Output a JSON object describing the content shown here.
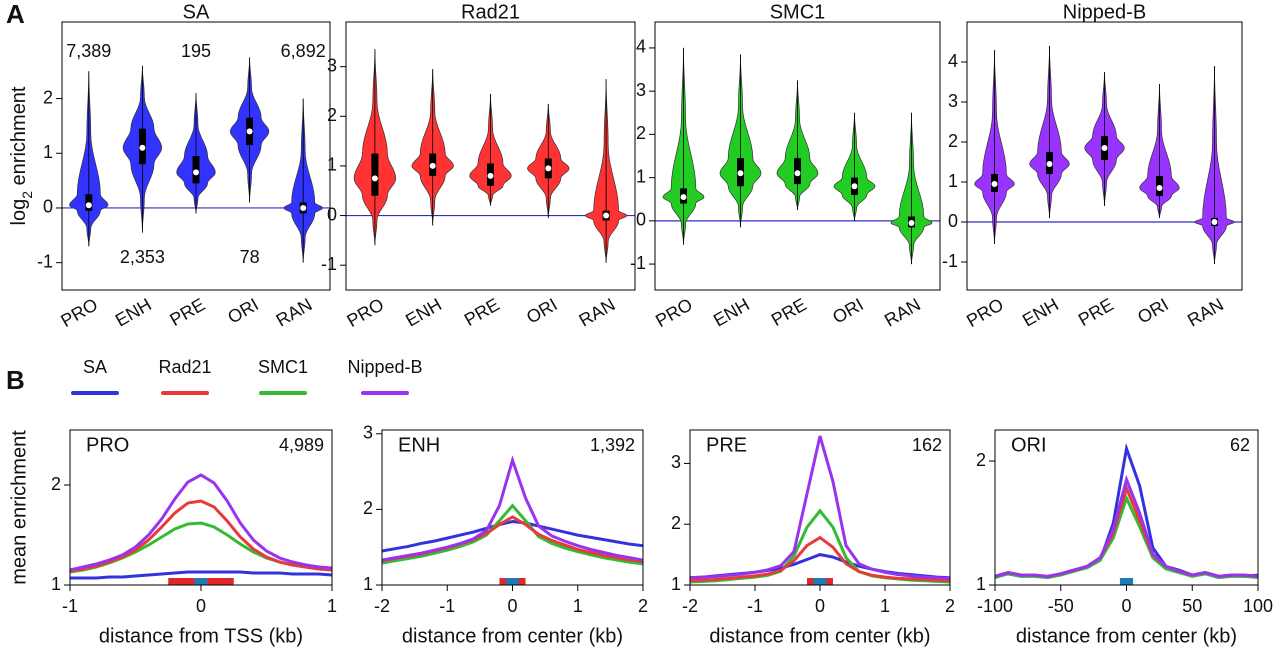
{
  "panels": [
    "A",
    "B"
  ],
  "chart_data": [
    {
      "type": "violin",
      "title": "SA",
      "ylabel": {
        "base": "log",
        "sub": "2",
        "rest": " enrichment"
      },
      "color": "#3333ff",
      "categories": [
        "PRO",
        "ENH",
        "PRE",
        "ORI",
        "RAN"
      ],
      "stats": {
        "min": [
          -0.7,
          -0.45,
          -0.1,
          0.1,
          -1.0
        ],
        "q1": [
          -0.05,
          0.8,
          0.45,
          1.15,
          -0.1
        ],
        "median": [
          0.05,
          1.1,
          0.65,
          1.4,
          0.0
        ],
        "q3": [
          0.25,
          1.45,
          0.95,
          1.65,
          0.1
        ],
        "max": [
          2.5,
          2.6,
          2.1,
          2.75,
          2.0
        ]
      },
      "ylim": [
        -1.5,
        3.4
      ],
      "yticks": [
        -1,
        0,
        1,
        2
      ],
      "hline": 0,
      "hline_color": "#3030c0",
      "annotations": [
        {
          "text": "7,389",
          "category": 0,
          "position": "top"
        },
        {
          "text": "195",
          "category": 2,
          "position": "top"
        },
        {
          "text": "6,892",
          "category": 4,
          "position": "top"
        },
        {
          "text": "2,353",
          "category": 1,
          "position": "bottom"
        },
        {
          "text": "78",
          "category": 3,
          "position": "bottom"
        }
      ]
    },
    {
      "type": "violin",
      "title": "Rad21",
      "color": "#ff3333",
      "categories": [
        "PRO",
        "ENH",
        "PRE",
        "ORI",
        "RAN"
      ],
      "stats": {
        "min": [
          -0.6,
          -0.2,
          0.2,
          -0.05,
          -0.95
        ],
        "q1": [
          0.4,
          0.8,
          0.6,
          0.75,
          -0.1
        ],
        "median": [
          0.75,
          1.0,
          0.8,
          0.95,
          0.0
        ],
        "q3": [
          1.25,
          1.25,
          1.05,
          1.15,
          0.1
        ],
        "max": [
          3.35,
          2.95,
          2.45,
          2.25,
          2.75
        ]
      },
      "ylim": [
        -1.5,
        3.9
      ],
      "yticks": [
        -1,
        0,
        1,
        2,
        3
      ],
      "hline": 0,
      "hline_color": "#3030c0"
    },
    {
      "type": "violin",
      "title": "SMC1",
      "color": "#22cc22",
      "categories": [
        "PRO",
        "ENH",
        "PRE",
        "ORI",
        "RAN"
      ],
      "stats": {
        "min": [
          -0.55,
          -0.15,
          0.25,
          0.0,
          -1.0
        ],
        "q1": [
          0.4,
          0.8,
          0.85,
          0.6,
          -0.15
        ],
        "median": [
          0.55,
          1.1,
          1.1,
          0.8,
          -0.05
        ],
        "q3": [
          0.75,
          1.45,
          1.45,
          1.0,
          0.1
        ],
        "max": [
          4.0,
          3.85,
          3.25,
          2.5,
          2.5
        ]
      },
      "ylim": [
        -1.6,
        4.6
      ],
      "yticks": [
        -1,
        0,
        1,
        2,
        3,
        4
      ],
      "hline": 0,
      "hline_color": "#3030c0"
    },
    {
      "type": "violin",
      "title": "Nipped-B",
      "color": "#9933ff",
      "categories": [
        "PRO",
        "ENH",
        "PRE",
        "ORI",
        "RAN"
      ],
      "stats": {
        "min": [
          -0.55,
          0.1,
          0.4,
          0.1,
          -1.05
        ],
        "q1": [
          0.75,
          1.2,
          1.55,
          0.65,
          -0.1
        ],
        "median": [
          0.95,
          1.45,
          1.85,
          0.85,
          0.0
        ],
        "q3": [
          1.2,
          1.75,
          2.15,
          1.15,
          0.1
        ],
        "max": [
          4.3,
          4.4,
          3.75,
          3.45,
          3.9
        ]
      },
      "ylim": [
        -1.7,
        5.0
      ],
      "yticks": [
        -1,
        0,
        1,
        2,
        3,
        4
      ],
      "hline": 0,
      "hline_color": "#3030c0"
    },
    {
      "type": "line",
      "label": "PRO",
      "count": "4,989",
      "xlabel": "distance from TSS (kb)",
      "ylabel": "mean enrichment",
      "x": [
        -1,
        -0.9,
        -0.8,
        -0.7,
        -0.6,
        -0.5,
        -0.4,
        -0.3,
        -0.2,
        -0.1,
        0,
        0.1,
        0.2,
        0.3,
        0.4,
        0.5,
        0.6,
        0.7,
        0.8,
        0.9,
        1
      ],
      "series": [
        {
          "name": "SA",
          "color": "#3333dd",
          "values": [
            1.07,
            1.07,
            1.07,
            1.08,
            1.08,
            1.09,
            1.1,
            1.11,
            1.12,
            1.13,
            1.13,
            1.13,
            1.13,
            1.13,
            1.12,
            1.12,
            1.12,
            1.11,
            1.11,
            1.11,
            1.1
          ]
        },
        {
          "name": "Rad21",
          "color": "#e83a3a",
          "values": [
            1.14,
            1.16,
            1.19,
            1.23,
            1.28,
            1.35,
            1.45,
            1.58,
            1.72,
            1.82,
            1.84,
            1.78,
            1.64,
            1.48,
            1.36,
            1.28,
            1.23,
            1.2,
            1.18,
            1.16,
            1.15
          ]
        },
        {
          "name": "SMC1",
          "color": "#33bb33",
          "values": [
            1.13,
            1.15,
            1.18,
            1.22,
            1.27,
            1.33,
            1.4,
            1.48,
            1.56,
            1.61,
            1.62,
            1.58,
            1.5,
            1.41,
            1.33,
            1.27,
            1.23,
            1.2,
            1.18,
            1.16,
            1.15
          ]
        },
        {
          "name": "Nipped-B",
          "color": "#9933ee",
          "values": [
            1.15,
            1.18,
            1.21,
            1.25,
            1.3,
            1.38,
            1.5,
            1.66,
            1.86,
            2.03,
            2.1,
            2.02,
            1.84,
            1.62,
            1.45,
            1.34,
            1.27,
            1.23,
            1.2,
            1.18,
            1.17
          ]
        }
      ],
      "xlim": [
        -1,
        1
      ],
      "xticks": [
        -1,
        0,
        1
      ],
      "ylim": [
        1,
        2.55
      ],
      "yticks": [
        1,
        2
      ],
      "regions": [
        {
          "range": [
            -0.25,
            0.25
          ],
          "color": "#e02828"
        },
        {
          "range": [
            -0.05,
            0.05
          ],
          "color": "#1f7ab8"
        }
      ]
    },
    {
      "type": "line",
      "label": "ENH",
      "count": "1,392",
      "xlabel": "distance from center (kb)",
      "x": [
        -2,
        -1.8,
        -1.6,
        -1.4,
        -1.2,
        -1,
        -0.8,
        -0.6,
        -0.4,
        -0.2,
        0,
        0.2,
        0.4,
        0.6,
        0.8,
        1,
        1.2,
        1.4,
        1.6,
        1.8,
        2
      ],
      "series": [
        {
          "name": "SA",
          "color": "#3333dd",
          "values": [
            1.45,
            1.48,
            1.51,
            1.55,
            1.58,
            1.62,
            1.66,
            1.7,
            1.75,
            1.8,
            1.84,
            1.82,
            1.78,
            1.74,
            1.7,
            1.66,
            1.63,
            1.6,
            1.57,
            1.54,
            1.52
          ]
        },
        {
          "name": "Rad21",
          "color": "#e83a3a",
          "values": [
            1.32,
            1.35,
            1.38,
            1.41,
            1.45,
            1.49,
            1.54,
            1.6,
            1.68,
            1.8,
            1.9,
            1.8,
            1.67,
            1.59,
            1.53,
            1.47,
            1.43,
            1.39,
            1.36,
            1.33,
            1.31
          ]
        },
        {
          "name": "SMC1",
          "color": "#33bb33",
          "values": [
            1.29,
            1.32,
            1.35,
            1.38,
            1.42,
            1.46,
            1.51,
            1.57,
            1.66,
            1.85,
            2.05,
            1.85,
            1.64,
            1.55,
            1.49,
            1.44,
            1.4,
            1.36,
            1.33,
            1.3,
            1.28
          ]
        },
        {
          "name": "Nipped-B",
          "color": "#9933ee",
          "values": [
            1.33,
            1.36,
            1.39,
            1.42,
            1.46,
            1.5,
            1.55,
            1.61,
            1.72,
            2.05,
            2.65,
            2.15,
            1.78,
            1.65,
            1.58,
            1.52,
            1.47,
            1.43,
            1.39,
            1.36,
            1.33
          ]
        }
      ],
      "xlim": [
        -2,
        2
      ],
      "xticks": [
        -2,
        -1,
        0,
        1,
        2
      ],
      "ylim": [
        1,
        3.05
      ],
      "yticks": [
        1,
        2,
        3
      ],
      "regions": [
        {
          "range": [
            -0.2,
            0.2
          ],
          "color": "#e02828"
        },
        {
          "range": [
            -0.1,
            0.1
          ],
          "color": "#1f7ab8"
        }
      ]
    },
    {
      "type": "line",
      "label": "PRE",
      "count": "162",
      "xlabel": "distance from center (kb)",
      "x": [
        -2,
        -1.8,
        -1.6,
        -1.4,
        -1.2,
        -1,
        -0.8,
        -0.6,
        -0.4,
        -0.2,
        0,
        0.2,
        0.4,
        0.6,
        0.8,
        1,
        1.2,
        1.4,
        1.6,
        1.8,
        2
      ],
      "series": [
        {
          "name": "SA",
          "color": "#3333dd",
          "values": [
            1.12,
            1.13,
            1.15,
            1.17,
            1.19,
            1.21,
            1.24,
            1.28,
            1.34,
            1.42,
            1.5,
            1.46,
            1.38,
            1.31,
            1.26,
            1.22,
            1.19,
            1.17,
            1.15,
            1.13,
            1.12
          ]
        },
        {
          "name": "Rad21",
          "color": "#e83a3a",
          "values": [
            1.07,
            1.08,
            1.09,
            1.11,
            1.13,
            1.15,
            1.18,
            1.24,
            1.4,
            1.65,
            1.78,
            1.62,
            1.35,
            1.22,
            1.16,
            1.13,
            1.11,
            1.1,
            1.09,
            1.08,
            1.07
          ]
        },
        {
          "name": "SMC1",
          "color": "#33bb33",
          "values": [
            1.05,
            1.06,
            1.07,
            1.09,
            1.11,
            1.13,
            1.16,
            1.23,
            1.48,
            1.95,
            2.22,
            1.95,
            1.45,
            1.22,
            1.15,
            1.12,
            1.1,
            1.08,
            1.07,
            1.06,
            1.05
          ]
        },
        {
          "name": "Nipped-B",
          "color": "#9933ee",
          "values": [
            1.12,
            1.13,
            1.14,
            1.16,
            1.18,
            1.21,
            1.25,
            1.32,
            1.55,
            2.5,
            3.45,
            2.7,
            1.65,
            1.35,
            1.26,
            1.21,
            1.17,
            1.15,
            1.13,
            1.12,
            1.11
          ]
        }
      ],
      "xlim": [
        -2,
        2
      ],
      "xticks": [
        -2,
        -1,
        0,
        1,
        2
      ],
      "ylim": [
        1,
        3.55
      ],
      "yticks": [
        1,
        2,
        3
      ],
      "regions": [
        {
          "range": [
            -0.2,
            0.2
          ],
          "color": "#e02828"
        },
        {
          "range": [
            -0.1,
            0.1
          ],
          "color": "#1f7ab8"
        }
      ]
    },
    {
      "type": "line",
      "label": "ORI",
      "count": "62",
      "xlabel": "distance from center (kb)",
      "x": [
        -100,
        -90,
        -80,
        -70,
        -60,
        -50,
        -40,
        -30,
        -20,
        -10,
        0,
        10,
        20,
        30,
        40,
        50,
        60,
        70,
        80,
        90,
        100
      ],
      "series": [
        {
          "name": "SA",
          "color": "#3333dd",
          "values": [
            1.07,
            1.09,
            1.07,
            1.08,
            1.06,
            1.09,
            1.12,
            1.14,
            1.2,
            1.5,
            2.1,
            1.8,
            1.3,
            1.15,
            1.12,
            1.08,
            1.1,
            1.07,
            1.08,
            1.07,
            1.08
          ]
        },
        {
          "name": "Rad21",
          "color": "#e83a3a",
          "values": [
            1.07,
            1.1,
            1.08,
            1.08,
            1.07,
            1.09,
            1.12,
            1.15,
            1.22,
            1.42,
            1.78,
            1.52,
            1.24,
            1.15,
            1.11,
            1.08,
            1.1,
            1.07,
            1.08,
            1.08,
            1.07
          ]
        },
        {
          "name": "SMC1",
          "color": "#33bb33",
          "values": [
            1.06,
            1.09,
            1.07,
            1.07,
            1.06,
            1.08,
            1.11,
            1.14,
            1.2,
            1.38,
            1.7,
            1.47,
            1.22,
            1.13,
            1.1,
            1.07,
            1.09,
            1.06,
            1.07,
            1.07,
            1.06
          ]
        },
        {
          "name": "Nipped-B",
          "color": "#9933ee",
          "values": [
            1.07,
            1.1,
            1.08,
            1.08,
            1.07,
            1.09,
            1.12,
            1.15,
            1.22,
            1.45,
            1.85,
            1.58,
            1.25,
            1.15,
            1.11,
            1.08,
            1.1,
            1.07,
            1.08,
            1.08,
            1.07
          ]
        }
      ],
      "xlim": [
        -100,
        100
      ],
      "xticks": [
        -100,
        -50,
        0,
        50,
        100
      ],
      "ylim": [
        1,
        2.25
      ],
      "yticks": [
        1,
        2
      ],
      "regions": [
        {
          "range": [
            -5,
            5
          ],
          "color": "#1f7ab8"
        }
      ]
    }
  ]
}
